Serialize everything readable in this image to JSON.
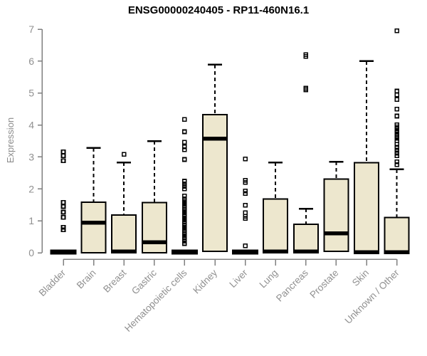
{
  "title": "ENSG00000240405 - RP11-460N16.1",
  "chart_data": {
    "type": "boxplot",
    "title": "ENSG00000240405 - RP11-460N16.1",
    "xlabel": "",
    "ylabel": "Expression",
    "ylim": [
      0,
      7
    ],
    "yticks": [
      0,
      1,
      2,
      3,
      4,
      5,
      6,
      7
    ],
    "grid": false,
    "legend": "none",
    "categories": [
      "Bladder",
      "Brain",
      "Breast",
      "Gastric",
      "Hematopoietic cells",
      "Kidney",
      "Liver",
      "Lung",
      "Pancreas",
      "Prostate",
      "Skin",
      "Unknown / Other"
    ],
    "series": [
      {
        "name": "Bladder",
        "median": 0.02,
        "q1": 0,
        "q3": 0.05,
        "whisker_low": 0,
        "whisker_high": 0.05,
        "outliers": [
          0.72,
          0.8,
          1.11,
          1.27,
          1.45,
          1.58,
          2.88,
          3.04,
          3.16
        ]
      },
      {
        "name": "Brain",
        "median": 0.94,
        "q1": 0,
        "q3": 1.58,
        "whisker_low": 0,
        "whisker_high": 3.28,
        "outliers": []
      },
      {
        "name": "Breast",
        "median": 0.04,
        "q1": 0,
        "q3": 1.18,
        "whisker_low": 0,
        "whisker_high": 2.83,
        "outliers": [
          3.08
        ]
      },
      {
        "name": "Gastric",
        "median": 0.33,
        "q1": 0,
        "q3": 1.57,
        "whisker_low": 0,
        "whisker_high": 3.5,
        "outliers": []
      },
      {
        "name": "Hematopoietic cells",
        "median": 0.02,
        "q1": 0,
        "q3": 0.05,
        "whisker_low": 0,
        "whisker_high": 0.05,
        "outliers": [
          0.29,
          0.36,
          0.43,
          0.5,
          0.57,
          0.64,
          0.71,
          0.78,
          0.85,
          0.92,
          0.99,
          1.06,
          1.13,
          1.2,
          1.27,
          1.34,
          1.41,
          1.48,
          1.55,
          1.62,
          1.69,
          1.78,
          2.0,
          2.08,
          2.16,
          2.24,
          2.92,
          3.23,
          3.32,
          3.46,
          3.79,
          4.17
        ]
      },
      {
        "name": "Kidney",
        "median": 3.57,
        "q1": 0.04,
        "q3": 4.33,
        "whisker_low": 0.04,
        "whisker_high": 5.89,
        "outliers": []
      },
      {
        "name": "Liver",
        "median": 0.02,
        "q1": 0,
        "q3": 0.05,
        "whisker_low": 0,
        "whisker_high": 0.05,
        "outliers": [
          0.22,
          1.08,
          1.14,
          1.25,
          1.49,
          1.86,
          1.93,
          2.2,
          2.27,
          2.94
        ]
      },
      {
        "name": "Lung",
        "median": 0.04,
        "q1": 0,
        "q3": 1.68,
        "whisker_low": 0,
        "whisker_high": 2.83,
        "outliers": []
      },
      {
        "name": "Pancreas",
        "median": 0.04,
        "q1": 0,
        "q3": 0.89,
        "whisker_low": 0,
        "whisker_high": 1.38,
        "outliers": [
          5.1,
          5.15,
          6.15,
          6.2
        ]
      },
      {
        "name": "Prostate",
        "median": 0.61,
        "q1": 0.04,
        "q3": 2.31,
        "whisker_low": 0.04,
        "whisker_high": 2.85,
        "outliers": []
      },
      {
        "name": "Skin",
        "median": 0.02,
        "q1": 0,
        "q3": 2.82,
        "whisker_low": 0,
        "whisker_high": 6.0,
        "outliers": []
      },
      {
        "name": "Unknown / Other",
        "median": 0.02,
        "q1": 0,
        "q3": 1.1,
        "whisker_low": 0,
        "whisker_high": 2.61,
        "outliers": [
          2.76,
          2.85,
          3.04,
          3.12,
          3.21,
          3.3,
          3.39,
          3.51,
          3.58,
          3.65,
          3.72,
          3.8,
          3.87,
          3.94,
          4.01,
          4.28,
          4.5,
          4.8,
          4.94,
          5.06,
          6.95
        ]
      }
    ],
    "colors": {
      "box_fill": "#ede7ce",
      "box_border": "#000000",
      "median": "#000000",
      "whisker": "#000000",
      "outlier": "#000000",
      "axis": "#808080",
      "tick_label": "#909090",
      "title": "#000000"
    }
  }
}
